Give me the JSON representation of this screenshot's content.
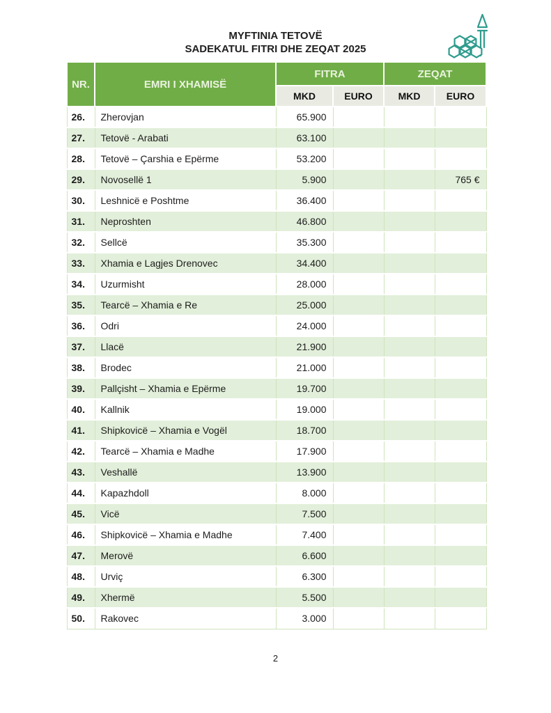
{
  "page": {
    "title_line1": "MYFTINIA TETOVË",
    "title_line2": "SADEKATUL FITRI DHE ZEQAT 2025",
    "page_number": "2",
    "logo": "mosque-minaret-logo"
  },
  "colors": {
    "header_green": "#70ad47",
    "header_text": "#eaf3df",
    "subheader_bg": "#e9ebe3",
    "row_alt_green": "#e2efda",
    "border_green": "#cfe3bc",
    "logo_teal": "#2f9c8e",
    "text_dark": "#1c1c1c"
  },
  "table": {
    "columns": {
      "nr": "NR.",
      "name": "EMRI I XHAMISË",
      "fitra": "FITRA",
      "zeqat": "ZEQAT",
      "fitra_mkd": "MKD",
      "fitra_euro": "EURO",
      "zeqat_mkd": "MKD",
      "zeqat_euro": "EURO"
    },
    "rows": [
      {
        "nr": "26.",
        "name": "Zherovjan",
        "fitra_mkd": "65.900",
        "fitra_euro": "",
        "zeqat_mkd": "",
        "zeqat_euro": ""
      },
      {
        "nr": "27.",
        "name": "Tetovë - Arabati",
        "fitra_mkd": "63.100",
        "fitra_euro": "",
        "zeqat_mkd": "",
        "zeqat_euro": ""
      },
      {
        "nr": "28.",
        "name": "Tetovë – Çarshia e Epërme",
        "fitra_mkd": "53.200",
        "fitra_euro": "",
        "zeqat_mkd": "",
        "zeqat_euro": ""
      },
      {
        "nr": "29.",
        "name": "Novosellë 1",
        "fitra_mkd": "5.900",
        "fitra_euro": "",
        "zeqat_mkd": "",
        "zeqat_euro": "765 €"
      },
      {
        "nr": "30.",
        "name": "Leshnicë e Poshtme",
        "fitra_mkd": "36.400",
        "fitra_euro": "",
        "zeqat_mkd": "",
        "zeqat_euro": ""
      },
      {
        "nr": "31.",
        "name": "Neproshten",
        "fitra_mkd": "46.800",
        "fitra_euro": "",
        "zeqat_mkd": "",
        "zeqat_euro": ""
      },
      {
        "nr": "32.",
        "name": "Sellcë",
        "fitra_mkd": "35.300",
        "fitra_euro": "",
        "zeqat_mkd": "",
        "zeqat_euro": ""
      },
      {
        "nr": "33.",
        "name": "Xhamia e Lagjes Drenovec",
        "fitra_mkd": "34.400",
        "fitra_euro": "",
        "zeqat_mkd": "",
        "zeqat_euro": ""
      },
      {
        "nr": "34.",
        "name": "Uzurmisht",
        "fitra_mkd": "28.000",
        "fitra_euro": "",
        "zeqat_mkd": "",
        "zeqat_euro": ""
      },
      {
        "nr": "35.",
        "name": "Tearcë – Xhamia e Re",
        "fitra_mkd": "25.000",
        "fitra_euro": "",
        "zeqat_mkd": "",
        "zeqat_euro": ""
      },
      {
        "nr": "36.",
        "name": "Odri",
        "fitra_mkd": "24.000",
        "fitra_euro": "",
        "zeqat_mkd": "",
        "zeqat_euro": ""
      },
      {
        "nr": "37.",
        "name": "Llacë",
        "fitra_mkd": "21.900",
        "fitra_euro": "",
        "zeqat_mkd": "",
        "zeqat_euro": ""
      },
      {
        "nr": "38.",
        "name": "Brodec",
        "fitra_mkd": "21.000",
        "fitra_euro": "",
        "zeqat_mkd": "",
        "zeqat_euro": ""
      },
      {
        "nr": "39.",
        "name": "Pallçisht – Xhamia e Epërme",
        "fitra_mkd": "19.700",
        "fitra_euro": "",
        "zeqat_mkd": "",
        "zeqat_euro": ""
      },
      {
        "nr": "40.",
        "name": "Kallnik",
        "fitra_mkd": "19.000",
        "fitra_euro": "",
        "zeqat_mkd": "",
        "zeqat_euro": ""
      },
      {
        "nr": "41.",
        "name": "Shipkovicë – Xhamia e Vogël",
        "fitra_mkd": "18.700",
        "fitra_euro": "",
        "zeqat_mkd": "",
        "zeqat_euro": ""
      },
      {
        "nr": "42.",
        "name": "Tearcë – Xhamia e Madhe",
        "fitra_mkd": "17.900",
        "fitra_euro": "",
        "zeqat_mkd": "",
        "zeqat_euro": ""
      },
      {
        "nr": "43.",
        "name": "Veshallë",
        "fitra_mkd": "13.900",
        "fitra_euro": "",
        "zeqat_mkd": "",
        "zeqat_euro": ""
      },
      {
        "nr": "44.",
        "name": "Kapazhdoll",
        "fitra_mkd": "8.000",
        "fitra_euro": "",
        "zeqat_mkd": "",
        "zeqat_euro": ""
      },
      {
        "nr": "45.",
        "name": "Vicë",
        "fitra_mkd": "7.500",
        "fitra_euro": "",
        "zeqat_mkd": "",
        "zeqat_euro": ""
      },
      {
        "nr": "46.",
        "name": "Shipkovicë – Xhamia e Madhe",
        "fitra_mkd": "7.400",
        "fitra_euro": "",
        "zeqat_mkd": "",
        "zeqat_euro": ""
      },
      {
        "nr": "47.",
        "name": "Merovë",
        "fitra_mkd": "6.600",
        "fitra_euro": "",
        "zeqat_mkd": "",
        "zeqat_euro": ""
      },
      {
        "nr": "48.",
        "name": "Urviç",
        "fitra_mkd": "6.300",
        "fitra_euro": "",
        "zeqat_mkd": "",
        "zeqat_euro": ""
      },
      {
        "nr": "49.",
        "name": "Xhermë",
        "fitra_mkd": "5.500",
        "fitra_euro": "",
        "zeqat_mkd": "",
        "zeqat_euro": ""
      },
      {
        "nr": "50.",
        "name": "Rakovec",
        "fitra_mkd": "3.000",
        "fitra_euro": "",
        "zeqat_mkd": "",
        "zeqat_euro": ""
      }
    ]
  }
}
